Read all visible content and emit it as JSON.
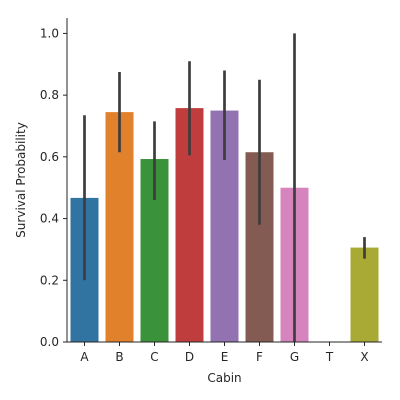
{
  "chart_data": {
    "type": "bar",
    "xlabel": "Cabin",
    "ylabel": "Survival Probability",
    "categories": [
      "A",
      "B",
      "C",
      "D",
      "E",
      "F",
      "G",
      "T",
      "X"
    ],
    "values": [
      0.467,
      0.745,
      0.593,
      0.758,
      0.75,
      0.615,
      0.5,
      0.0,
      0.306
    ],
    "error_low": [
      0.2,
      0.615,
      0.46,
      0.605,
      0.59,
      0.38,
      0.0,
      0.0,
      0.27
    ],
    "error_high": [
      0.735,
      0.875,
      0.715,
      0.91,
      0.88,
      0.85,
      1.0,
      0.0,
      0.34
    ],
    "colors": [
      "#3274a1",
      "#e1812c",
      "#3a923a",
      "#c03d3e",
      "#9372b2",
      "#845b53",
      "#d684bd",
      "#7f7f7f",
      "#a9aa35"
    ],
    "ylim": [
      0,
      1.05
    ],
    "yticks": [
      0.0,
      0.2,
      0.4,
      0.6,
      0.8,
      1.0
    ],
    "ytick_labels": [
      "0.0",
      "0.2",
      "0.4",
      "0.6",
      "0.8",
      "1.0"
    ],
    "grid": false
  }
}
